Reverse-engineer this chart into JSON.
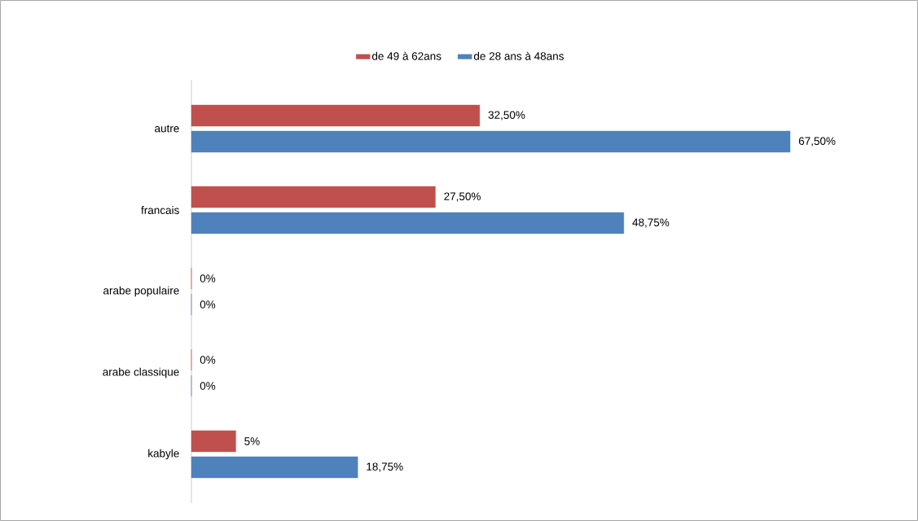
{
  "chart_data": {
    "type": "bar",
    "orientation": "horizontal",
    "legend": "top",
    "categories": [
      "autre",
      "francais",
      "arabe populaire",
      "arabe classique",
      "kabyle"
    ],
    "series": [
      {
        "name": "de 49 à 62ans",
        "color": "#c0504d",
        "values": [
          32.5,
          27.5,
          0,
          0,
          5
        ],
        "value_labels": [
          "32,50%",
          "27,50%",
          "0%",
          "0%",
          "5%"
        ]
      },
      {
        "name": "de 28 ans à 48ans",
        "color": "#4f81bd",
        "values": [
          67.5,
          48.75,
          0,
          0,
          18.75
        ],
        "value_labels": [
          "67,50%",
          "48,75%",
          "0%",
          "0%",
          "18,75%"
        ]
      }
    ]
  }
}
